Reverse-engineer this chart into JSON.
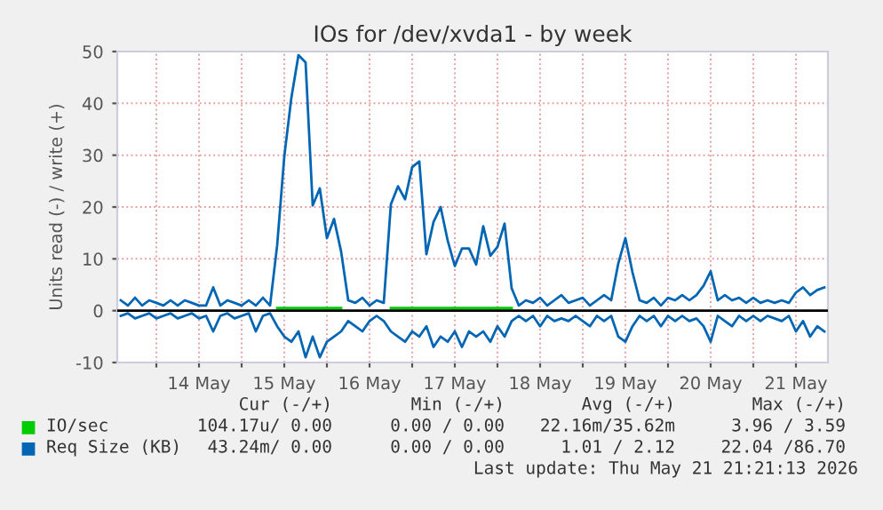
{
  "chart_data": {
    "type": "line",
    "title": "IOs for /dev/xvda1 - by week",
    "ylabel": "Units read (-) / write (+)",
    "x": [
      "2026-05-13T14:00",
      "2026-05-13T16:00",
      "2026-05-13T18:00",
      "2026-05-13T20:00",
      "2026-05-13T22:00",
      "2026-05-14T00:00",
      "2026-05-14T02:00",
      "2026-05-14T04:00",
      "2026-05-14T06:00",
      "2026-05-14T08:00",
      "2026-05-14T10:00",
      "2026-05-14T12:00",
      "2026-05-14T14:00",
      "2026-05-14T16:00",
      "2026-05-14T18:00",
      "2026-05-14T20:00",
      "2026-05-14T22:00",
      "2026-05-15T00:00",
      "2026-05-15T02:00",
      "2026-05-15T04:00",
      "2026-05-15T06:00",
      "2026-05-15T08:00",
      "2026-05-15T10:00",
      "2026-05-15T12:00",
      "2026-05-15T14:00",
      "2026-05-15T16:00",
      "2026-05-15T18:00",
      "2026-05-15T20:00",
      "2026-05-15T22:00",
      "2026-05-16T00:00",
      "2026-05-16T02:00",
      "2026-05-16T04:00",
      "2026-05-16T06:00",
      "2026-05-16T08:00",
      "2026-05-16T10:00",
      "2026-05-16T12:00",
      "2026-05-16T14:00",
      "2026-05-16T16:00",
      "2026-05-16T18:00",
      "2026-05-16T20:00",
      "2026-05-16T22:00",
      "2026-05-17T00:00",
      "2026-05-17T02:00",
      "2026-05-17T04:00",
      "2026-05-17T06:00",
      "2026-05-17T08:00",
      "2026-05-17T10:00",
      "2026-05-17T12:00",
      "2026-05-17T14:00",
      "2026-05-17T16:00",
      "2026-05-17T18:00",
      "2026-05-17T20:00",
      "2026-05-17T22:00",
      "2026-05-18T00:00",
      "2026-05-18T02:00",
      "2026-05-18T04:00",
      "2026-05-18T06:00",
      "2026-05-18T08:00",
      "2026-05-18T10:00",
      "2026-05-18T12:00",
      "2026-05-18T14:00",
      "2026-05-18T16:00",
      "2026-05-18T18:00",
      "2026-05-18T20:00",
      "2026-05-18T22:00",
      "2026-05-19T00:00",
      "2026-05-19T02:00",
      "2026-05-19T04:00",
      "2026-05-19T06:00",
      "2026-05-19T08:00",
      "2026-05-19T10:00",
      "2026-05-19T12:00",
      "2026-05-19T14:00",
      "2026-05-19T16:00",
      "2026-05-19T18:00",
      "2026-05-19T20:00",
      "2026-05-19T22:00",
      "2026-05-20T00:00",
      "2026-05-20T02:00",
      "2026-05-20T04:00",
      "2026-05-20T06:00",
      "2026-05-20T08:00",
      "2026-05-20T10:00",
      "2026-05-20T12:00",
      "2026-05-20T14:00",
      "2026-05-20T16:00",
      "2026-05-20T18:00",
      "2026-05-20T20:00",
      "2026-05-20T22:00",
      "2026-05-21T00:00",
      "2026-05-21T02:00",
      "2026-05-21T04:00",
      "2026-05-21T06:00",
      "2026-05-21T08:00",
      "2026-05-21T10:00",
      "2026-05-21T12:00",
      "2026-05-21T14:00",
      "2026-05-21T16:00",
      "2026-05-21T18:00",
      "2026-05-21T20:00"
    ],
    "series": [
      {
        "name": "IO/sec",
        "color": "#00cc00",
        "values": [
          null,
          null,
          null,
          null,
          null,
          null,
          null,
          null,
          null,
          null,
          null,
          null,
          null,
          null,
          null,
          null,
          null,
          null,
          null,
          null,
          null,
          null,
          0.5,
          0.5,
          0.5,
          0.5,
          0.5,
          0.5,
          0.5,
          0.5,
          0.5,
          0.5,
          null,
          null,
          null,
          null,
          null,
          null,
          0.5,
          0.5,
          0.5,
          0.5,
          0.5,
          0.5,
          0.5,
          0.5,
          0.5,
          0.5,
          0.5,
          0.5,
          0.5,
          0.5,
          0.5,
          0.5,
          0.5,
          0.5,
          null,
          null,
          null,
          null,
          null,
          null,
          null,
          null,
          null,
          null,
          null,
          null,
          null,
          null,
          null,
          null,
          null,
          null,
          null,
          null,
          null,
          null,
          null,
          null,
          null,
          null,
          null,
          null,
          null,
          null,
          null,
          null,
          null,
          null,
          null,
          null,
          null,
          null,
          null,
          null,
          null,
          null,
          null,
          null
        ]
      },
      {
        "name": "Req Size (KB)",
        "color": "#0066b3",
        "values": [
          2,
          1,
          2.5,
          1,
          2,
          1.5,
          1,
          2,
          1,
          2,
          1.5,
          1,
          1,
          4.5,
          1,
          2,
          1.5,
          1,
          2,
          1,
          2.5,
          1,
          12.6,
          29.7,
          41.1,
          49.3,
          47.9,
          20.3,
          23.6,
          14.0,
          17.7,
          11.4,
          2,
          1.5,
          2.5,
          1,
          2,
          1.5,
          20.5,
          24.0,
          21.5,
          27.7,
          28.8,
          10.9,
          17.1,
          20.0,
          13.5,
          8.6,
          12.0,
          12.0,
          8.9,
          16.3,
          10.6,
          12.3,
          16.8,
          4.3,
          1,
          2,
          1.5,
          2.5,
          1,
          2,
          3,
          1.5,
          2,
          2.5,
          1,
          2,
          3,
          2,
          9.1,
          14.0,
          7.4,
          2,
          1.5,
          2.5,
          1,
          2.5,
          2,
          3,
          2,
          3,
          4.8,
          7.6,
          2,
          3,
          2,
          2.5,
          1.5,
          2.5,
          1.5,
          2,
          1.5,
          2,
          1.5,
          3.5,
          4.5,
          3,
          4,
          4.5
        ]
      },
      {
        "color": "#0066b3",
        "values": [
          -1,
          -0.5,
          -1.5,
          -1,
          -0.5,
          -1.5,
          -1,
          -0.5,
          -1.5,
          -1,
          -0.5,
          -1.5,
          -1,
          -4,
          -1,
          -0.5,
          -1.5,
          -1,
          -0.5,
          -4,
          -1,
          -0.5,
          -3,
          -5,
          -6,
          -4,
          -9,
          -5,
          -9,
          -6,
          -5,
          -4,
          -2,
          -3,
          -4,
          -2,
          -1,
          -2,
          -4,
          -5,
          -6,
          -4,
          -5,
          -3,
          -7,
          -5,
          -6,
          -4,
          -7,
          -4,
          -5,
          -4,
          -6,
          -3,
          -5,
          -2,
          -1,
          -2,
          -1,
          -3,
          -1,
          -2,
          -1.5,
          -2,
          -1,
          -2,
          -3,
          -1,
          -2,
          -1,
          -5,
          -6,
          -3,
          -1,
          -2,
          -1,
          -3,
          -1,
          -2,
          -1,
          -2,
          -1.5,
          -3,
          -6,
          -1,
          -2,
          -3,
          -1,
          -2,
          -1,
          -2,
          -1,
          -1.5,
          -2,
          -1,
          -4,
          -2,
          -5,
          -3,
          -4
        ]
      }
    ],
    "xlim": [
      "2026-05-13T13:00",
      "2026-05-21T21:00"
    ],
    "xticks": [
      {
        "value": "2026-05-14T00:00",
        "label": null
      },
      {
        "value": "2026-05-14T12:00",
        "label": "14 May"
      },
      {
        "value": "2026-05-15T00:00",
        "label": null
      },
      {
        "value": "2026-05-15T12:00",
        "label": "15 May"
      },
      {
        "value": "2026-05-16T00:00",
        "label": null
      },
      {
        "value": "2026-05-16T12:00",
        "label": "16 May"
      },
      {
        "value": "2026-05-17T00:00",
        "label": null
      },
      {
        "value": "2026-05-17T12:00",
        "label": "17 May"
      },
      {
        "value": "2026-05-18T00:00",
        "label": null
      },
      {
        "value": "2026-05-18T12:00",
        "label": "18 May"
      },
      {
        "value": "2026-05-19T00:00",
        "label": null
      },
      {
        "value": "2026-05-19T12:00",
        "label": "19 May"
      },
      {
        "value": "2026-05-20T00:00",
        "label": null
      },
      {
        "value": "2026-05-20T12:00",
        "label": "20 May"
      },
      {
        "value": "2026-05-21T00:00",
        "label": null
      },
      {
        "value": "2026-05-21T12:00",
        "label": "21 May"
      }
    ],
    "ylim": [
      -10,
      50
    ],
    "yticks": [
      -10,
      0,
      10,
      20,
      30,
      40,
      50
    ],
    "ref_lines": [
      {
        "axis": "y",
        "value": 0,
        "color": "#000000"
      }
    ],
    "grid": true,
    "legend": "bottom",
    "marker": "none",
    "line_style": "solid",
    "annotations": [
      "Cur (-/+)",
      "Min (-/+)",
      "Avg (-/+)",
      "Max (-/+)",
      "104.17u/ 0.00",
      "0.00 / 0.00",
      "22.16m/35.62m",
      "3.96 / 3.59",
      "43.24m/ 0.00",
      "0.00 / 0.00",
      "1.01 / 2.12",
      "22.04 /86.70",
      "Last update: Thu May 21 21:21:13 2026"
    ]
  }
}
